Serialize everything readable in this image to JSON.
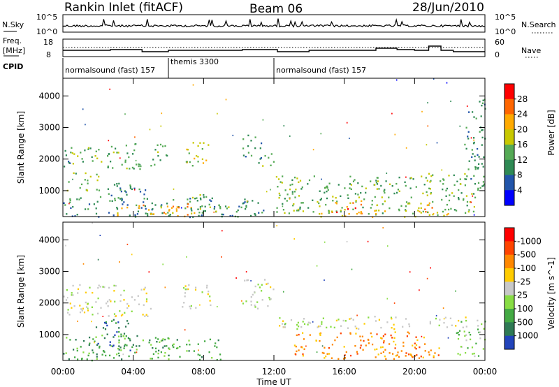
{
  "header": {
    "station": "Rankin Inlet (fitACF)",
    "beam": "Beam 06",
    "date": "28/Jun/2010"
  },
  "noise_panel": {
    "left_label": "N.Sky",
    "right_label": "N.Search",
    "left_ticks": [
      "10^5",
      "10^0"
    ],
    "right_ticks": [
      "10^5",
      "10^0"
    ]
  },
  "freq_panel": {
    "left_label_top": "Freq.",
    "left_label_bottom": "[MHz]",
    "right_label": "Nave",
    "left_ticks": [
      "18",
      "8"
    ],
    "right_ticks": [
      "60",
      "0"
    ]
  },
  "cpid": {
    "label": "CPID",
    "segments": [
      {
        "text": "normalsound (fast) 157",
        "start_hour": 0,
        "end_hour": 6
      },
      {
        "text": "themis 3300",
        "start_hour": 6,
        "end_hour": 12
      },
      {
        "text": "normalsound (fast) 157",
        "start_hour": 12,
        "end_hour": 24
      }
    ]
  },
  "chart_data": [
    {
      "type": "heatmap",
      "title": "",
      "xlabel": "Time UT",
      "ylabel": "Slant Range [km]",
      "x_ticks": [
        "00:00",
        "04:00",
        "08:00",
        "12:00",
        "16:00",
        "20:00",
        "00:00"
      ],
      "x_tick_hours": [
        0,
        4,
        8,
        12,
        16,
        20,
        24
      ],
      "xlim": [
        0,
        24
      ],
      "y_ticks": [
        1000,
        2000,
        3000,
        4000
      ],
      "ylim": [
        180,
        4560
      ],
      "colorbar_label": "Power [dB]",
      "colorbar_ticks": [
        "4",
        "8",
        "12",
        "16",
        "20",
        "24",
        "28"
      ],
      "colorbar_colors": [
        "#0000ff",
        "#2255aa",
        "#2f8a55",
        "#55aa55",
        "#c8c800",
        "#ffaa00",
        "#ff6600",
        "#ff0000"
      ],
      "blobs": [
        {
          "t0": 0.0,
          "t1": 0.6,
          "r0": 1600,
          "r1": 2300,
          "level": 2
        },
        {
          "t0": 0.4,
          "t1": 2.3,
          "r0": 1800,
          "r1": 2400,
          "level": 3
        },
        {
          "t0": 2.5,
          "t1": 4.6,
          "r0": 1700,
          "r1": 2600,
          "level": 3
        },
        {
          "t0": 4.9,
          "t1": 6.0,
          "r0": 1800,
          "r1": 2500,
          "level": 3
        },
        {
          "t0": 6.7,
          "t1": 8.3,
          "r0": 1800,
          "r1": 2600,
          "level": 4
        },
        {
          "t0": 0.2,
          "t1": 2.0,
          "r0": 1000,
          "r1": 1600,
          "level": 3
        },
        {
          "t0": 2.0,
          "t1": 4.8,
          "r0": 700,
          "r1": 1300,
          "level": 2
        },
        {
          "t0": 0.0,
          "t1": 11.5,
          "r0": 180,
          "r1": 800,
          "level": 2
        },
        {
          "t0": 3.0,
          "t1": 7.5,
          "r0": 180,
          "r1": 600,
          "level": 5
        },
        {
          "t0": 7.0,
          "t1": 9.5,
          "r0": 300,
          "r1": 900,
          "level": 3
        },
        {
          "t0": 10.2,
          "t1": 11.3,
          "r0": 2000,
          "r1": 2800,
          "level": 2
        },
        {
          "t0": 11.0,
          "t1": 12.0,
          "r0": 1800,
          "r1": 2200,
          "level": 3
        },
        {
          "t0": 12.1,
          "t1": 20.0,
          "r0": 1100,
          "r1": 1500,
          "level": 3
        },
        {
          "t0": 20.0,
          "t1": 23.0,
          "r0": 1100,
          "r1": 1600,
          "level": 3
        },
        {
          "t0": 12.1,
          "t1": 23.5,
          "r0": 300,
          "r1": 1100,
          "level": 3
        },
        {
          "t0": 15.0,
          "t1": 17.0,
          "r0": 300,
          "r1": 700,
          "level": 6
        },
        {
          "t0": 19.5,
          "t1": 21.0,
          "r0": 300,
          "r1": 650,
          "level": 5
        },
        {
          "t0": 13.6,
          "t1": 22.0,
          "r0": 180,
          "r1": 400,
          "level": 4
        },
        {
          "t0": 22.8,
          "t1": 24.0,
          "r0": 1000,
          "r1": 4000,
          "level": 2
        }
      ]
    },
    {
      "type": "heatmap",
      "title": "",
      "xlabel": "Time UT",
      "ylabel": "Slant Range [km]",
      "x_ticks": [
        "00:00",
        "04:00",
        "08:00",
        "12:00",
        "16:00",
        "20:00",
        "00:00"
      ],
      "x_tick_hours": [
        0,
        4,
        8,
        12,
        16,
        20,
        24
      ],
      "xlim": [
        0,
        24
      ],
      "y_ticks": [
        1000,
        2000,
        3000,
        4000
      ],
      "ylim": [
        180,
        4560
      ],
      "colorbar_label": "Velocity [m s^-1]",
      "colorbar_ticks": [
        "1000",
        "500",
        "100",
        "25",
        "-25",
        "-100",
        "-500",
        "-1000"
      ],
      "colorbar_colors": [
        "#2244bb",
        "#2f7a55",
        "#44aa44",
        "#88dd44",
        "#c8c8c8",
        "#ffcc00",
        "#ff8800",
        "#ff4400",
        "#ff0000"
      ],
      "blobs": [
        {
          "t0": 0.0,
          "t1": 5.0,
          "r0": 1600,
          "r1": 2600,
          "level": 4
        },
        {
          "t0": 6.6,
          "t1": 8.4,
          "r0": 1800,
          "r1": 2600,
          "level": 4
        },
        {
          "t0": 10.2,
          "t1": 12.0,
          "r0": 1800,
          "r1": 2800,
          "level": 4
        },
        {
          "t0": 1.8,
          "t1": 3.8,
          "r0": 300,
          "r1": 1500,
          "level": 1
        },
        {
          "t0": 0.0,
          "t1": 6.0,
          "r0": 200,
          "r1": 1000,
          "level": 2
        },
        {
          "t0": 5.0,
          "t1": 9.0,
          "r0": 200,
          "r1": 900,
          "level": 2
        },
        {
          "t0": 12.2,
          "t1": 23.0,
          "r0": 1200,
          "r1": 1600,
          "level": 4
        },
        {
          "t0": 13.0,
          "t1": 21.0,
          "r0": 250,
          "r1": 1100,
          "level": 6
        },
        {
          "t0": 19.0,
          "t1": 21.5,
          "r0": 250,
          "r1": 700,
          "level": 6
        },
        {
          "t0": 22.3,
          "t1": 24.0,
          "r0": 300,
          "r1": 1600,
          "level": 3
        }
      ]
    }
  ]
}
